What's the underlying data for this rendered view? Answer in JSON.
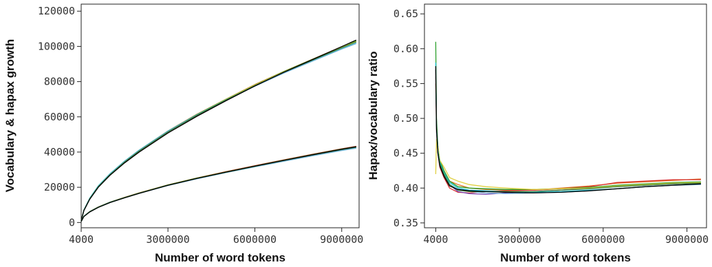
{
  "chart_data": [
    {
      "type": "line",
      "xlabel": "Number of word tokens",
      "ylabel": "Vocabulary & hapax growth",
      "xlim": [
        4000,
        9600000
      ],
      "ylim": [
        -3000,
        124000
      ],
      "x_ticks": [
        4000,
        3000000,
        6000000,
        9000000
      ],
      "x_tick_labels": [
        "4000",
        "3000000",
        "6000000",
        "9000000"
      ],
      "y_ticks": [
        0,
        20000,
        40000,
        60000,
        80000,
        100000,
        120000
      ],
      "y_tick_labels": [
        "0",
        "20000",
        "40000",
        "60000",
        "80000",
        "100000",
        "120000"
      ],
      "grid": false,
      "legend": "none",
      "x": [
        4000,
        100000,
        300000,
        600000,
        1000000,
        1500000,
        2000000,
        3000000,
        4000000,
        5000000,
        6000000,
        7000000,
        8000000,
        9000000,
        9500000
      ],
      "series": [
        {
          "color": "#e07020",
          "values": [
            1100,
            7200,
            13800,
            20800,
            27600,
            34800,
            41000,
            52000,
            61500,
            70000,
            78300,
            85800,
            92800,
            99800,
            103300
          ]
        },
        {
          "color": "#d93030",
          "values": [
            1100,
            7100,
            13600,
            20600,
            27400,
            34500,
            40700,
            51600,
            61100,
            69800,
            78000,
            85600,
            92600,
            99600,
            103000
          ]
        },
        {
          "color": "#7040b0",
          "values": [
            1100,
            7000,
            13500,
            20500,
            27300,
            34400,
            40600,
            51500,
            61000,
            69600,
            77800,
            85400,
            92400,
            99300,
            102600
          ]
        },
        {
          "color": "#2ca02c",
          "values": [
            1100,
            7100,
            13700,
            20700,
            27500,
            34600,
            40800,
            51800,
            61300,
            69900,
            78100,
            85700,
            92700,
            99700,
            103200
          ]
        },
        {
          "color": "#e0d040",
          "values": [
            1100,
            7000,
            13600,
            20600,
            27400,
            34500,
            40700,
            51700,
            61200,
            69800,
            78000,
            85500,
            92500,
            99400,
            102800
          ]
        },
        {
          "color": "#17becf",
          "values": [
            1100,
            7200,
            13900,
            20900,
            27700,
            34800,
            41000,
            51900,
            61200,
            69600,
            77600,
            85000,
            91800,
            98600,
            101800
          ]
        },
        {
          "color": "#6baed6",
          "values": [
            1100,
            7100,
            13700,
            20700,
            27500,
            34600,
            40800,
            51700,
            61000,
            69400,
            77400,
            84800,
            91700,
            98500,
            101600
          ]
        },
        {
          "color": "#3a7d3a",
          "values": [
            1100,
            7000,
            13500,
            20500,
            27200,
            34300,
            40500,
            51400,
            60900,
            69500,
            77700,
            85300,
            92300,
            99200,
            102500
          ]
        },
        {
          "color": "#000000",
          "values": [
            1100,
            6800,
            13200,
            20100,
            26800,
            33800,
            39900,
            50800,
            60300,
            69100,
            77500,
            85300,
            92600,
            99900,
            103600
          ]
        },
        {
          "color": "#e07020",
          "values": [
            600,
            3600,
            6300,
            8900,
            11600,
            14300,
            16800,
            21400,
            25300,
            28900,
            32300,
            35600,
            38800,
            41900,
            43300
          ]
        },
        {
          "color": "#d93030",
          "values": [
            600,
            3600,
            6200,
            8800,
            11500,
            14200,
            16700,
            21300,
            25200,
            28800,
            32200,
            35500,
            38700,
            41800,
            43200
          ]
        },
        {
          "color": "#7040b0",
          "values": [
            600,
            3500,
            6100,
            8700,
            11400,
            14100,
            16600,
            21200,
            25100,
            28700,
            32100,
            35400,
            38600,
            41700,
            43100
          ]
        },
        {
          "color": "#2ca02c",
          "values": [
            600,
            3600,
            6200,
            8800,
            11500,
            14200,
            16700,
            21300,
            25200,
            28700,
            32100,
            35400,
            38600,
            41700,
            43000
          ]
        },
        {
          "color": "#e0d040",
          "values": [
            600,
            3500,
            6100,
            8700,
            11400,
            14100,
            16600,
            21200,
            25100,
            28600,
            32000,
            35300,
            38500,
            41500,
            42900
          ]
        },
        {
          "color": "#17becf",
          "values": [
            600,
            3600,
            6200,
            8800,
            11500,
            14100,
            16600,
            21100,
            24900,
            28400,
            31700,
            34900,
            38000,
            41000,
            42400
          ]
        },
        {
          "color": "#6baed6",
          "values": [
            600,
            3500,
            6100,
            8700,
            11300,
            14000,
            16500,
            21000,
            24800,
            28300,
            31600,
            34800,
            37900,
            40900,
            42200
          ]
        },
        {
          "color": "#3a7d3a",
          "values": [
            600,
            3500,
            6100,
            8700,
            11400,
            14100,
            16600,
            21100,
            25000,
            28500,
            31900,
            35200,
            38400,
            41400,
            42800
          ]
        },
        {
          "color": "#000000",
          "values": [
            600,
            3400,
            6000,
            8600,
            11300,
            14000,
            16500,
            21100,
            25000,
            28600,
            32000,
            35300,
            38500,
            41600,
            43000
          ]
        }
      ]
    },
    {
      "type": "line",
      "xlabel": "Number of word tokens",
      "ylabel": "Hapax/vocabulary ratio",
      "xlim": [
        -400000,
        9700000
      ],
      "ylim": [
        0.343,
        0.664
      ],
      "x_ticks": [
        4000,
        3000000,
        6000000,
        9000000
      ],
      "x_tick_labels": [
        "4000",
        "3000000",
        "6000000",
        "9000000"
      ],
      "y_ticks": [
        0.35,
        0.4,
        0.45,
        0.5,
        0.55,
        0.6,
        0.65
      ],
      "y_tick_labels": [
        "0.35",
        "0.40",
        "0.45",
        "0.50",
        "0.55",
        "0.60",
        "0.65"
      ],
      "grid": false,
      "legend": "none",
      "x": [
        4000,
        30000,
        80000,
        150000,
        300000,
        500000,
        800000,
        1200000,
        1800000,
        2500000,
        3500000,
        4500000,
        5500000,
        6500000,
        7500000,
        8500000,
        9500000
      ],
      "series": [
        {
          "color": "#e07020",
          "values": [
            0.56,
            0.49,
            0.455,
            0.44,
            0.425,
            0.41,
            0.405,
            0.4,
            0.398,
            0.397,
            0.397,
            0.4,
            0.403,
            0.407,
            0.409,
            0.411,
            0.413
          ]
        },
        {
          "color": "#d93030",
          "values": [
            0.55,
            0.48,
            0.45,
            0.43,
            0.415,
            0.4,
            0.394,
            0.393,
            0.395,
            0.396,
            0.397,
            0.399,
            0.402,
            0.408,
            0.41,
            0.412,
            0.412
          ]
        },
        {
          "color": "#7040b0",
          "values": [
            0.57,
            0.49,
            0.455,
            0.435,
            0.42,
            0.405,
            0.395,
            0.392,
            0.391,
            0.393,
            0.395,
            0.397,
            0.4,
            0.403,
            0.405,
            0.406,
            0.407
          ]
        },
        {
          "color": "#2ca02c",
          "values": [
            0.61,
            0.5,
            0.46,
            0.44,
            0.425,
            0.41,
            0.402,
            0.4,
            0.399,
            0.398,
            0.398,
            0.399,
            0.401,
            0.404,
            0.406,
            0.408,
            0.409
          ]
        },
        {
          "color": "#e0d040",
          "values": [
            0.42,
            0.47,
            0.46,
            0.44,
            0.43,
            0.415,
            0.41,
            0.405,
            0.402,
            0.4,
            0.398,
            0.399,
            0.4,
            0.403,
            0.405,
            0.407,
            0.408
          ]
        },
        {
          "color": "#17becf",
          "values": [
            0.58,
            0.49,
            0.455,
            0.437,
            0.422,
            0.408,
            0.4,
            0.397,
            0.396,
            0.395,
            0.394,
            0.395,
            0.397,
            0.399,
            0.402,
            0.404,
            0.406
          ]
        },
        {
          "color": "#6baed6",
          "values": [
            0.56,
            0.48,
            0.45,
            0.432,
            0.418,
            0.405,
            0.398,
            0.395,
            0.393,
            0.392,
            0.393,
            0.394,
            0.396,
            0.399,
            0.402,
            0.404,
            0.405
          ]
        },
        {
          "color": "#3a7d3a",
          "values": [
            0.57,
            0.49,
            0.452,
            0.435,
            0.42,
            0.405,
            0.397,
            0.395,
            0.395,
            0.395,
            0.395,
            0.397,
            0.399,
            0.402,
            0.404,
            0.406,
            0.407
          ]
        },
        {
          "color": "#000000",
          "values": [
            0.575,
            0.485,
            0.45,
            0.432,
            0.417,
            0.403,
            0.398,
            0.396,
            0.395,
            0.394,
            0.393,
            0.394,
            0.396,
            0.399,
            0.402,
            0.404,
            0.406
          ]
        }
      ]
    }
  ]
}
